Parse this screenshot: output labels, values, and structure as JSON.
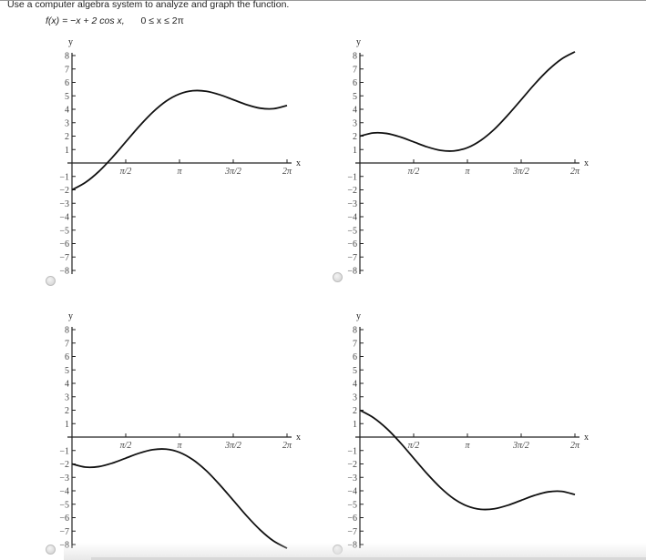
{
  "question": {
    "instruction": "Use a computer algebra system to analyze and graph the function.",
    "function_prefix": "f(x) = −x + 2 cos x,",
    "domain": "0 ≤ x ≤ 2π"
  },
  "colors": {
    "curve": "#111111",
    "axis": "#222222",
    "tick_label": "#444444",
    "text": "#222222"
  },
  "choices": [
    {
      "id": "option-1",
      "selected": false
    },
    {
      "id": "option-2",
      "selected": false
    },
    {
      "id": "option-3",
      "selected": false
    },
    {
      "id": "option-4",
      "selected": false
    }
  ],
  "chart_data": [
    {
      "type": "line",
      "panel": "top-left",
      "title": "",
      "xlabel": "x",
      "ylabel": "y",
      "xlim": [
        0,
        6.2832
      ],
      "ylim": [
        -8,
        8
      ],
      "x_ticks": [
        "π/2",
        "π",
        "3π/2",
        "2π"
      ],
      "y_ticks": [
        "8",
        "7",
        "6",
        "5",
        "4",
        "3",
        "2",
        "1",
        "−1",
        "−2",
        "−3",
        "−4",
        "−5",
        "−6",
        "−7",
        "−8"
      ],
      "grid": false,
      "series": [
        {
          "name": "curve",
          "x": [
            0,
            0.3927,
            0.7854,
            1.1781,
            1.5708,
            1.9635,
            2.3562,
            2.7489,
            3.1416,
            3.5343,
            3.927,
            4.3197,
            4.7124,
            5.1051,
            5.4978,
            5.8905,
            6.2832
          ],
          "values": [
            -2.0,
            -1.45,
            -0.63,
            0.41,
            1.57,
            2.73,
            3.77,
            4.6,
            5.14,
            5.38,
            5.34,
            5.08,
            4.71,
            4.34,
            4.08,
            4.04,
            4.28
          ]
        }
      ]
    },
    {
      "type": "line",
      "panel": "top-right",
      "title": "",
      "xlabel": "x",
      "ylabel": "y",
      "xlim": [
        0,
        6.2832
      ],
      "ylim": [
        -8,
        8
      ],
      "x_ticks": [
        "π/2",
        "π",
        "3π/2",
        "2π"
      ],
      "y_ticks": [
        "8",
        "7",
        "6",
        "5",
        "4",
        "3",
        "2",
        "1",
        "−1",
        "−2",
        "−3",
        "−4",
        "−5",
        "−6",
        "−7",
        "−8"
      ],
      "grid": false,
      "series": [
        {
          "name": "curve",
          "x": [
            0,
            0.3927,
            0.7854,
            1.1781,
            1.5708,
            1.9635,
            2.3562,
            2.7489,
            3.1416,
            3.5343,
            3.927,
            4.3197,
            4.7124,
            5.1051,
            5.4978,
            5.8905,
            6.2832
          ],
          "values": [
            2.0,
            2.24,
            2.2,
            1.94,
            1.57,
            1.2,
            0.94,
            0.9,
            1.14,
            1.69,
            2.51,
            3.56,
            4.71,
            5.87,
            6.91,
            7.74,
            8.28
          ]
        }
      ]
    },
    {
      "type": "line",
      "panel": "bottom-left",
      "title": "",
      "xlabel": "x",
      "ylabel": "y",
      "xlim": [
        0,
        6.2832
      ],
      "ylim": [
        -8,
        8
      ],
      "x_ticks": [
        "π/2",
        "π",
        "3π/2",
        "2π"
      ],
      "y_ticks": [
        "8",
        "7",
        "6",
        "5",
        "4",
        "3",
        "2",
        "1",
        "−1",
        "−2",
        "−3",
        "−4",
        "−5",
        "−6",
        "−7",
        "−8"
      ],
      "grid": false,
      "series": [
        {
          "name": "curve",
          "x": [
            0,
            0.3927,
            0.7854,
            1.1781,
            1.5708,
            1.9635,
            2.3562,
            2.7489,
            3.1416,
            3.5343,
            3.927,
            4.3197,
            4.7124,
            5.1051,
            5.4978,
            5.8905,
            6.2832
          ],
          "values": [
            -2.0,
            -2.24,
            -2.2,
            -1.94,
            -1.57,
            -1.2,
            -0.94,
            -0.9,
            -1.14,
            -1.69,
            -2.51,
            -3.56,
            -4.71,
            -5.87,
            -6.91,
            -7.74,
            -8.28
          ]
        }
      ]
    },
    {
      "type": "line",
      "panel": "bottom-right",
      "title": "",
      "xlabel": "x",
      "ylabel": "y",
      "xlim": [
        0,
        6.2832
      ],
      "ylim": [
        -8,
        8
      ],
      "x_ticks": [
        "π/2",
        "π",
        "3π/2",
        "2π"
      ],
      "y_ticks": [
        "8",
        "7",
        "6",
        "5",
        "4",
        "3",
        "2",
        "1",
        "−1",
        "−2",
        "−3",
        "−4",
        "−5",
        "−6",
        "−7",
        "−8"
      ],
      "grid": false,
      "series": [
        {
          "name": "curve",
          "x": [
            0,
            0.3927,
            0.7854,
            1.1781,
            1.5708,
            1.9635,
            2.3562,
            2.7489,
            3.1416,
            3.5343,
            3.927,
            4.3197,
            4.7124,
            5.1051,
            5.4978,
            5.8905,
            6.2832
          ],
          "values": [
            2.0,
            1.45,
            0.63,
            -0.41,
            -1.57,
            -2.73,
            -3.77,
            -4.6,
            -5.14,
            -5.38,
            -5.34,
            -5.08,
            -4.71,
            -4.34,
            -4.08,
            -4.04,
            -4.28
          ]
        }
      ]
    }
  ]
}
